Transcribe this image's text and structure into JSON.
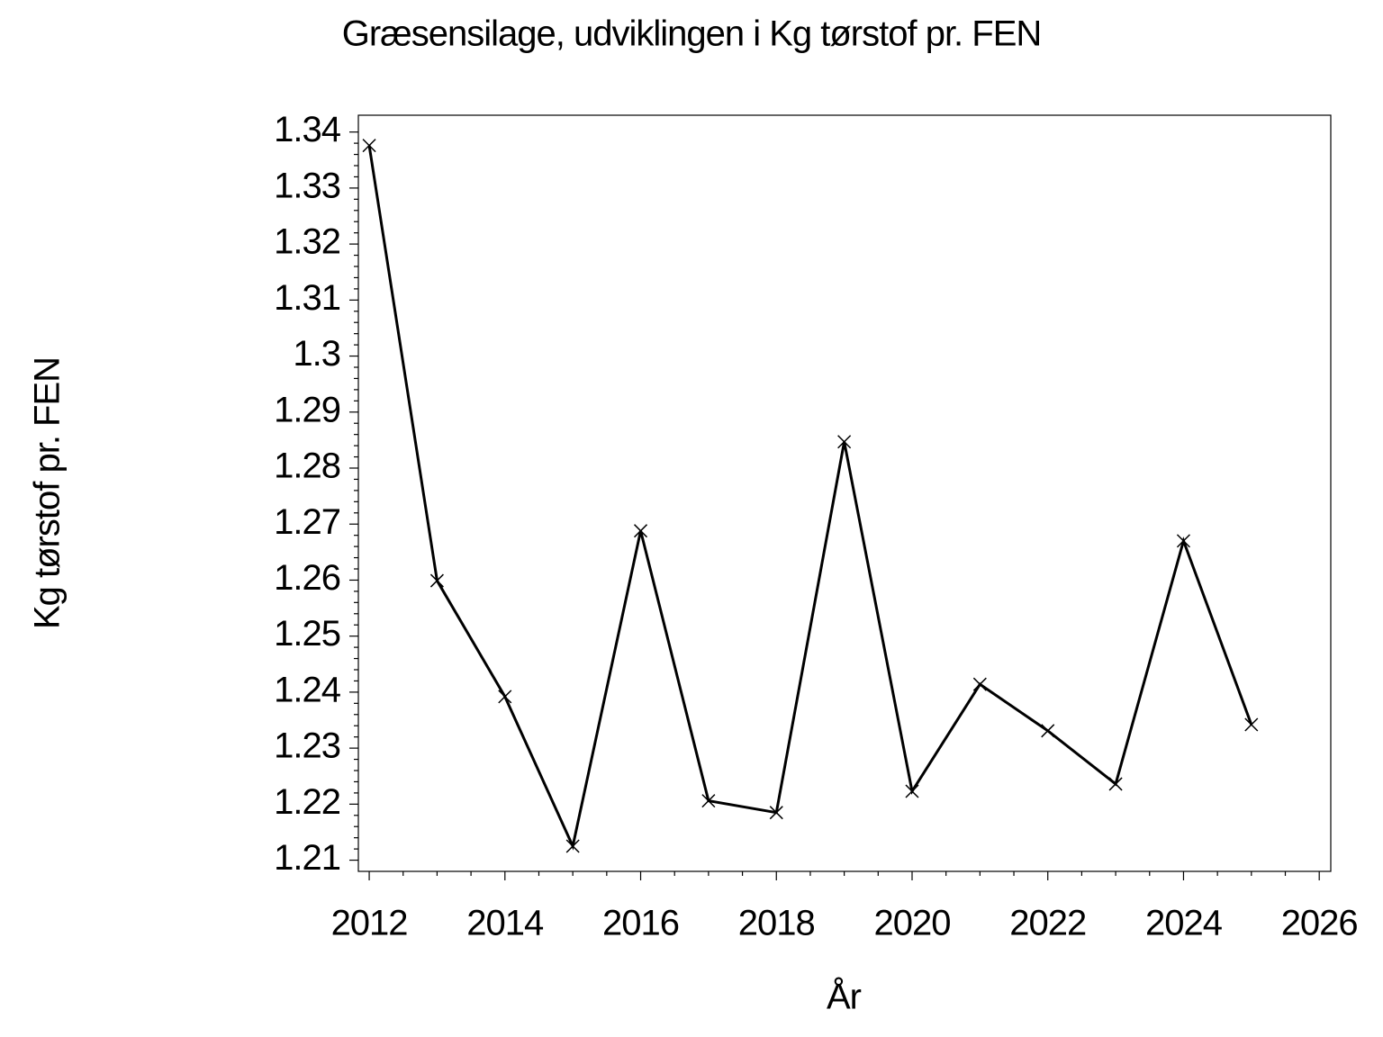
{
  "chart_data": {
    "type": "line",
    "title": "Græsensilage,  udviklingen  i  Kg  tørstof  pr.  FEN",
    "x_label": "År",
    "y_label": "Kg  tørstof  pr.  FEN",
    "x": [
      2012,
      2013,
      2014,
      2015,
      2016,
      2017,
      2018,
      2019,
      2020,
      2021,
      2022,
      2023,
      2024,
      2025
    ],
    "series": [
      {
        "color": "#000000",
        "values": [
          1.3376,
          1.2599,
          1.2392,
          1.2125,
          1.2688,
          1.2206,
          1.2185,
          1.2847,
          1.2223,
          1.2414,
          1.2331,
          1.2236,
          1.267,
          1.2342
        ]
      }
    ],
    "xlim": [
      2011.84,
      2026.17
    ],
    "xticks": [
      2012,
      2014,
      2016,
      2018,
      2020,
      2022,
      2024,
      2026
    ],
    "ylim": [
      1.208,
      1.343
    ],
    "yticks": [
      1.21,
      1.22,
      1.23,
      1.24,
      1.25,
      1.26,
      1.27,
      1.28,
      1.29,
      1.3,
      1.31,
      1.32,
      1.33,
      1.34
    ],
    "grid": false
  }
}
